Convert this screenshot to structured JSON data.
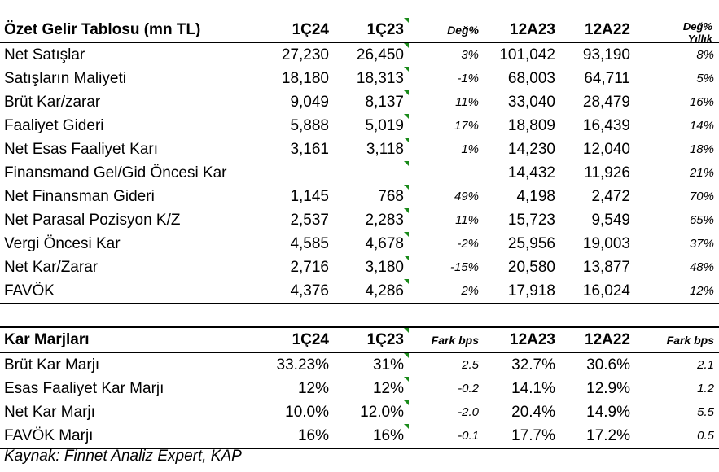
{
  "income": {
    "title": "Özet Gelir Tablosu (mn TL)",
    "columns": [
      "1Ç24",
      "1Ç23",
      "Değ%",
      "12A23",
      "12A22"
    ],
    "last_col_line1": "Değ%",
    "last_col_line2": "Yıllık",
    "rows": [
      {
        "label": "Net Satışlar",
        "v": [
          "27,230",
          "26,450",
          "3%",
          "101,042",
          "93,190",
          "8%"
        ]
      },
      {
        "label": "Satışların Maliyeti",
        "v": [
          "18,180",
          "18,313",
          "-1%",
          "68,003",
          "64,711",
          "5%"
        ]
      },
      {
        "label": "Brüt Kar/zarar",
        "v": [
          "9,049",
          "8,137",
          "11%",
          "33,040",
          "28,479",
          "16%"
        ]
      },
      {
        "label": "Faaliyet Gideri",
        "v": [
          "5,888",
          "5,019",
          "17%",
          "18,809",
          "16,439",
          "14%"
        ]
      },
      {
        "label": "Net Esas Faaliyet Karı",
        "v": [
          "3,161",
          "3,118",
          "1%",
          "14,230",
          "12,040",
          "18%"
        ]
      },
      {
        "label": "Finansmand Gel/Gid Öncesi Kar",
        "v": [
          "",
          "",
          "",
          "14,432",
          "11,926",
          "21%"
        ]
      },
      {
        "label": "Net Finansman Gideri",
        "v": [
          "1,145",
          "768",
          "49%",
          "4,198",
          "2,472",
          "70%"
        ]
      },
      {
        "label": "Net Parasal Pozisyon K/Z",
        "v": [
          "2,537",
          "2,283",
          "11%",
          "15,723",
          "9,549",
          "65%"
        ]
      },
      {
        "label": "Vergi Öncesi Kar",
        "v": [
          "4,585",
          "4,678",
          "-2%",
          "25,956",
          "19,003",
          "37%"
        ]
      },
      {
        "label": "Net Kar/Zarar",
        "v": [
          "2,716",
          "3,180",
          "-15%",
          "20,580",
          "13,877",
          "48%"
        ]
      },
      {
        "label": "FAVÖK",
        "v": [
          "4,376",
          "4,286",
          "2%",
          "17,918",
          "16,024",
          "12%"
        ]
      }
    ]
  },
  "margins": {
    "title": "Kar Marjları",
    "columns": [
      "1Ç24",
      "1Ç23",
      "Fark bps",
      "12A23",
      "12A22",
      "Fark bps"
    ],
    "rows": [
      {
        "label": "Brüt Kar Marjı",
        "v": [
          "33.23%",
          "31%",
          "2.5",
          "32.7%",
          "30.6%",
          "2.1"
        ]
      },
      {
        "label": "Esas Faaliyet Kar Marjı",
        "v": [
          "12%",
          "12%",
          "-0.2",
          "14.1%",
          "12.9%",
          "1.2"
        ]
      },
      {
        "label": "Net Kar Marjı",
        "v": [
          "10.0%",
          "12.0%",
          "-2.0",
          "20.4%",
          "14.9%",
          "5.5"
        ]
      },
      {
        "label": "FAVÖK Marjı",
        "v": [
          "16%",
          "16%",
          "-0.1",
          "17.7%",
          "17.2%",
          "0.5"
        ]
      }
    ]
  },
  "source": "Kaynak: Finnet Analiz Expert, KAP",
  "colors": {
    "indicator": "#1a8a1a"
  }
}
